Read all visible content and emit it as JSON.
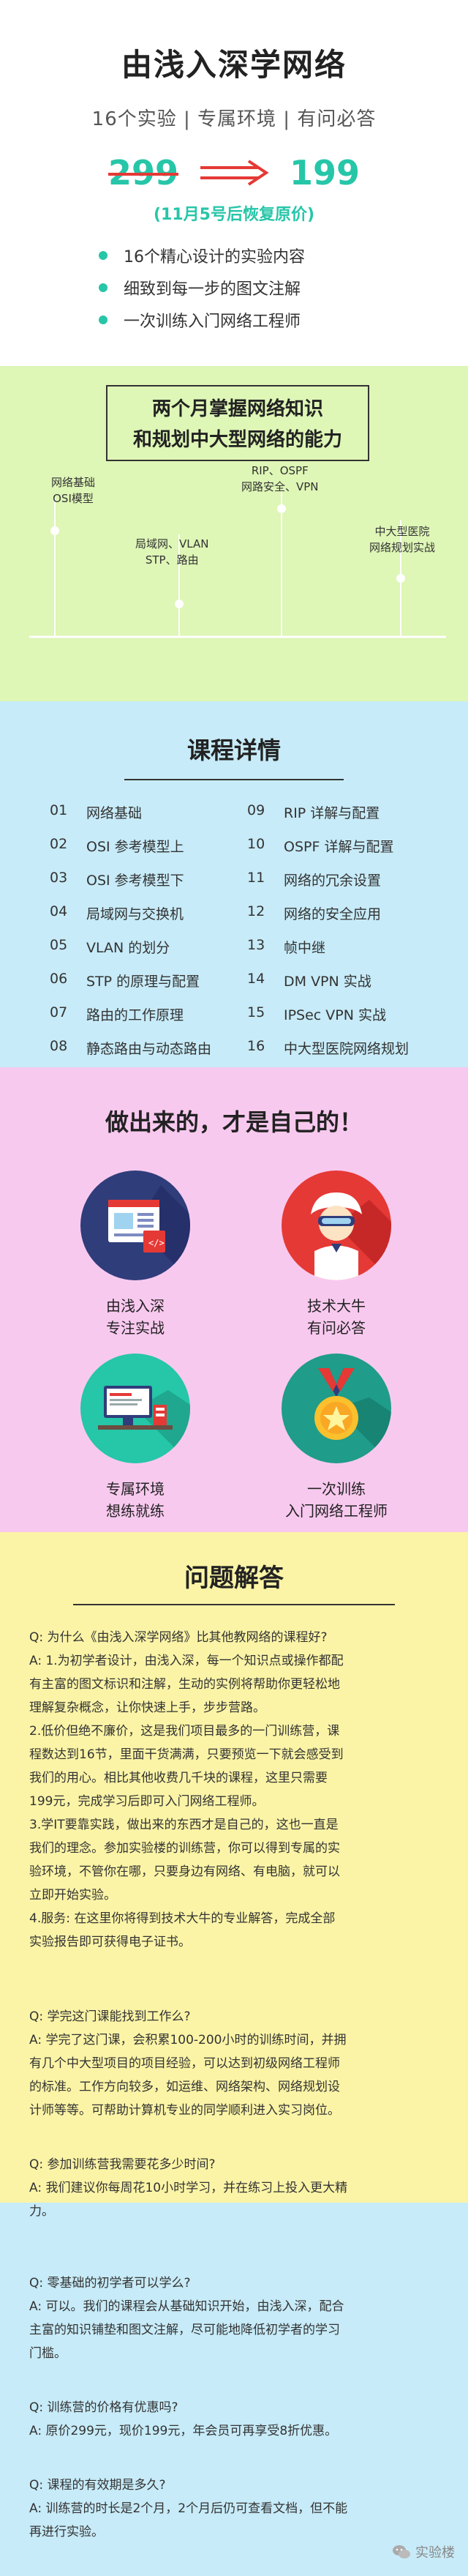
{
  "hero": {
    "title": "由浅入深学网络",
    "subtitle": "16个实验 | 专属环境 | 有问必答",
    "price_old": "299",
    "price_new": "199",
    "price_note": "(11月5号后恢复原价)",
    "features": [
      "16个精心设计的实验内容",
      "细致到每一步的图文注解",
      "一次训练入门网络工程师"
    ]
  },
  "roadmap": {
    "headline_1": "两个月掌握网络知识",
    "headline_2": "和规划中大型网络的能力",
    "milestones": [
      {
        "line1": "网络基础",
        "line2": "OSI模型"
      },
      {
        "line1": "局域网、VLAN",
        "line2": "STP、路由"
      },
      {
        "line1": "RIP、OSPF",
        "line2": "网路安全、VPN"
      },
      {
        "line1": "中大型医院",
        "line2": "网络规划实战"
      }
    ]
  },
  "course": {
    "title": "课程详情",
    "items": [
      {
        "num": "01",
        "name": "网络基础"
      },
      {
        "num": "02",
        "name": "OSI 参考模型上"
      },
      {
        "num": "03",
        "name": "OSI 参考模型下"
      },
      {
        "num": "04",
        "name": "局域网与交换机"
      },
      {
        "num": "05",
        "name": "VLAN 的划分"
      },
      {
        "num": "06",
        "name": "STP 的原理与配置"
      },
      {
        "num": "07",
        "name": "路由的工作原理"
      },
      {
        "num": "08",
        "name": "静态路由与动态路由"
      },
      {
        "num": "09",
        "name": "RIP 详解与配置"
      },
      {
        "num": "10",
        "name": "OSPF 详解与配置"
      },
      {
        "num": "11",
        "name": "网络的冗余设置"
      },
      {
        "num": "12",
        "name": "网络的安全应用"
      },
      {
        "num": "13",
        "name": "帧中继"
      },
      {
        "num": "14",
        "name": "DM VPN 实战"
      },
      {
        "num": "15",
        "name": "IPSec VPN 实战"
      },
      {
        "num": "16",
        "name": "中大型医院网络规划"
      }
    ]
  },
  "diy": {
    "title": "做出来的，才是自己的！",
    "cells": [
      {
        "line1": "由浅入深",
        "line2": "专注实战"
      },
      {
        "line1": "技术大牛",
        "line2": "有问必答"
      },
      {
        "line1": "专属环境",
        "line2": "想练就练"
      },
      {
        "line1": "一次训练",
        "line2": "入门网络工程师"
      }
    ]
  },
  "faq": {
    "title": "问题解答",
    "block1": [
      "Q: 为什么《由浅入深学网络》比其他教网络的课程好?",
      "A: 1.为初学者设计，由浅入深，每一个知识点或操作都配",
      "有主富的图文标识和注解，生动的实例将帮助你更轻松地",
      "理解复杂概念，让你快速上手，步步营路。",
      "2.低价但绝不廉价，这是我们项目最多的一门训练营，课",
      "程数达到16节，里面干货满满，只要预览一下就会感受到",
      "我们的用心。相比其他收费几千块的课程，这里只需要",
      "199元，完成学习后即可入门网络工程师。",
      "3.学IT要靠实践，做出来的东西才是自己的，这也一直是",
      "我们的理念。参加实验楼的训练营，你可以得到专属的实",
      "验环境，不管你在哪，只要身边有网络、有电脑，就可以",
      "立即开始实验。",
      "4.服务: 在这里你将得到技术大牛的专业解答，完成全部",
      "实验报告即可获得电子证书。"
    ],
    "block2": [
      "Q: 学完这门课能找到工作么?",
      "A: 学完了这门课，会积累100-200小时的训练时间，并拥",
      "有几个中大型项目的项目经验，可以达到初级网络工程师",
      "的标准。工作方向较多，如运维、网络架构、网络规划设",
      "计师等等。可帮助计算机专业的同学顺利进入实习岗位。"
    ],
    "block3": [
      "Q: 参加训练营我需要花多少时间?",
      "A: 我们建议你每周花10小时学习，并在练习上投入更大精",
      "力。"
    ],
    "block4": [
      "Q: 零基础的初学者可以学么?",
      "A: 可以。我们的课程会从基础知识开始，由浅入深，配合",
      "主富的知识铺垫和图文注解，尽可能地降低初学者的学习",
      "门槛。"
    ],
    "block5": [
      "Q: 训练营的价格有优惠吗?",
      "A: 原价299元，现价199元，年会员可再享受8折优惠。"
    ],
    "block6": [
      "Q: 课程的有效期是多久?",
      "A: 训练营的时长是2个月，2个月后仍可查看文档，但不能",
      "再进行实验。"
    ]
  },
  "watermark": {
    "text": "实验楼",
    "icon": "wechat-icon"
  },
  "colors": {
    "accent": "#26c6a8",
    "green_bg": "#def6b6",
    "blue_bg": "#c7ebf8",
    "pink_bg": "#f8c9ef",
    "yellow_bg": "#fbf4a6",
    "strike": "#e53935"
  }
}
